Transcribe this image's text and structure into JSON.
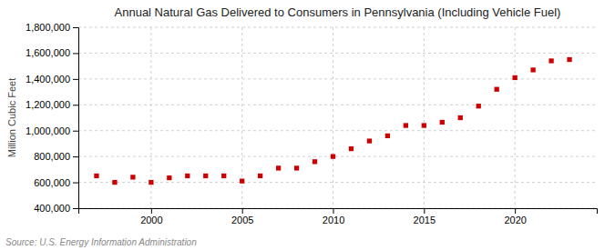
{
  "chart_data": {
    "type": "scatter",
    "title": "Annual Natural Gas Delivered to Consumers in Pennsylvania (Including Vehicle Fuel)",
    "ylabel": "Million Cubic Feet",
    "annotations": [
      "Source: U.S. Energy Information Administration"
    ],
    "x": [
      1997,
      1998,
      1999,
      2000,
      2001,
      2002,
      2003,
      2004,
      2005,
      2006,
      2007,
      2008,
      2009,
      2010,
      2011,
      2012,
      2013,
      2014,
      2015,
      2016,
      2017,
      2018,
      2019,
      2020,
      2021,
      2022,
      2023
    ],
    "values": [
      650000,
      600000,
      640000,
      600000,
      635000,
      650000,
      650000,
      650000,
      610000,
      650000,
      710000,
      710000,
      760000,
      800000,
      860000,
      920000,
      960000,
      1040000,
      1040000,
      1065000,
      1100000,
      1190000,
      1320000,
      1410000,
      1470000,
      1540000,
      1550000
    ],
    "color": "#cc0000",
    "marker": "square",
    "xlim": [
      1996,
      2024.5
    ],
    "xticks": [
      2000,
      2005,
      2010,
      2015,
      2020
    ],
    "ylim": [
      400000,
      1800000
    ],
    "yticks": [
      {
        "value": 400000,
        "label": "400,000"
      },
      {
        "value": 600000,
        "label": "600,000"
      },
      {
        "value": 800000,
        "label": "800,000"
      },
      {
        "value": 1000000,
        "label": "1,000,000"
      },
      {
        "value": 1200000,
        "label": "1,200,000"
      },
      {
        "value": 1400000,
        "label": "1,400,000"
      },
      {
        "value": 1600000,
        "label": "1,600,000"
      },
      {
        "value": 1800000,
        "label": "1,800,000"
      }
    ],
    "grid": true
  }
}
